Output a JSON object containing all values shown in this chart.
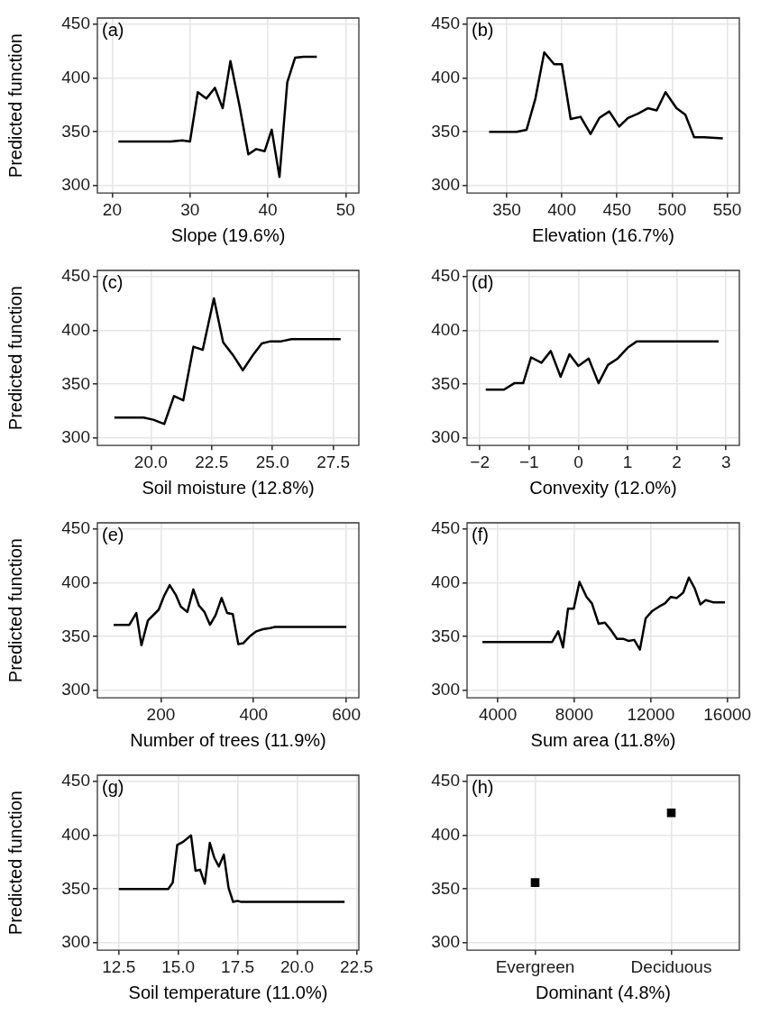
{
  "chart_data": [
    {
      "type": "line",
      "annotations": [
        "(a)"
      ],
      "xlabel": "Slope (19.6%)",
      "ylabel": "Predicted function",
      "xlim": [
        18.1,
        51.7
      ],
      "xticks": [
        20,
        30,
        40,
        50
      ],
      "ylim": [
        293,
        456
      ],
      "yticks": [
        300,
        350,
        400,
        450
      ],
      "grid": true,
      "series": [
        {
          "color": "#000000",
          "x": [
            20.8,
            27.5,
            29,
            30,
            31,
            32.1,
            33.2,
            34.2,
            35.2,
            36.4,
            37.5,
            38.5,
            39.6,
            40.5,
            41.5,
            42.5,
            43.5,
            44.6,
            46.3
          ],
          "values": [
            341,
            341,
            342,
            341,
            387,
            381,
            391,
            372,
            416,
            373,
            329,
            334,
            332,
            352,
            308,
            396,
            419,
            420,
            420
          ]
        }
      ]
    },
    {
      "type": "line",
      "annotations": [
        "(b)"
      ],
      "xlabel": "Elevation (16.7%)",
      "xlim": [
        314,
        561
      ],
      "xticks": [
        350,
        400,
        450,
        500,
        550
      ],
      "ylim": [
        293,
        456
      ],
      "yticks": [
        300,
        350,
        400,
        450
      ],
      "grid": true,
      "series": [
        {
          "color": "#000000",
          "x": [
            334,
            359,
            368,
            376,
            384,
            393,
            400,
            408,
            417,
            426,
            434,
            443,
            452,
            460,
            469,
            478,
            486,
            494,
            504,
            512,
            520,
            529,
            546
          ],
          "values": [
            350,
            350,
            352,
            381,
            424,
            413,
            413,
            362,
            364,
            348,
            363,
            369,
            355,
            363,
            367,
            372,
            370,
            387,
            372,
            366,
            345,
            345,
            344
          ]
        }
      ]
    },
    {
      "type": "line",
      "annotations": [
        "(c)"
      ],
      "xlabel": "Soil moisture (12.8%)",
      "ylabel": "Predicted function",
      "xlim": [
        17.8,
        28.55
      ],
      "xticks": [
        {
          "value": 20,
          "label": "20.0"
        },
        22.5,
        {
          "value": 25,
          "label": "25.0"
        },
        27.5
      ],
      "ylim": [
        293,
        456
      ],
      "yticks": [
        300,
        350,
        400,
        450
      ],
      "grid": true,
      "series": [
        {
          "color": "#000000",
          "x": [
            18.5,
            19.7,
            20.1,
            20.55,
            20.95,
            21.33,
            21.75,
            22.13,
            22.59,
            22.97,
            23.38,
            23.78,
            24.22,
            24.56,
            24.92,
            25.36,
            25.78,
            27.8
          ],
          "values": [
            319,
            319,
            317,
            313,
            339,
            335,
            385,
            382,
            430,
            389,
            377,
            363,
            378,
            388,
            390,
            390,
            392,
            392
          ]
        }
      ]
    },
    {
      "type": "line",
      "annotations": [
        "(d)"
      ],
      "xlabel": "Convexity (12.0%)",
      "xlim": [
        -2.26,
        3.27
      ],
      "xticks": [
        {
          "value": -2,
          "label": "−2"
        },
        {
          "value": -1,
          "label": "−1"
        },
        0,
        1,
        2,
        3
      ],
      "ylim": [
        293,
        456
      ],
      "yticks": [
        300,
        350,
        400,
        450
      ],
      "grid": true,
      "series": [
        {
          "color": "#000000",
          "x": [
            -1.88,
            -1.51,
            -1.3,
            -1.12,
            -0.96,
            -0.75,
            -0.56,
            -0.36,
            -0.18,
            0,
            0.21,
            0.41,
            0.6,
            0.8,
            1,
            1.19,
            1.51,
            2.85
          ],
          "values": [
            345,
            345,
            351,
            351,
            375,
            370,
            381,
            357,
            378,
            367,
            374,
            351,
            368,
            374,
            384,
            390,
            390,
            390
          ]
        }
      ]
    },
    {
      "type": "line",
      "annotations": [
        "(e)"
      ],
      "xlabel": "Number of trees (11.9%)",
      "ylabel": "Predicted function",
      "xlim": [
        63,
        627
      ],
      "xticks": [
        200,
        400,
        600
      ],
      "ylim": [
        293,
        456
      ],
      "yticks": [
        300,
        350,
        400,
        450
      ],
      "grid": true,
      "series": [
        {
          "color": "#000000",
          "x": [
            98,
            132,
            147,
            158,
            172,
            195,
            207,
            219,
            232,
            243,
            257,
            270,
            282,
            294,
            306,
            318,
            331,
            343,
            355,
            367,
            378,
            391,
            406,
            420,
            436,
            446,
            600
          ],
          "values": [
            361,
            361,
            372,
            342,
            365,
            375,
            388,
            398,
            389,
            378,
            373,
            394,
            379,
            373,
            361,
            370,
            386,
            372,
            371,
            343,
            344,
            350,
            355,
            357,
            358,
            359,
            359
          ]
        }
      ]
    },
    {
      "type": "line",
      "annotations": [
        "(f)"
      ],
      "xlabel": "Sum area (11.8%)",
      "xlim": [
        2394,
        16627
      ],
      "xticks": [
        4000,
        8000,
        12000,
        16000
      ],
      "ylim": [
        293,
        456
      ],
      "yticks": [
        300,
        350,
        400,
        450
      ],
      "grid": true,
      "series": [
        {
          "color": "#000000",
          "x": [
            3200,
            6840,
            7160,
            7410,
            7670,
            7970,
            8270,
            8640,
            8920,
            9270,
            9600,
            9920,
            10230,
            10550,
            10850,
            11130,
            11430,
            11730,
            12080,
            12430,
            12740,
            13040,
            13360,
            13690,
            13990,
            14290,
            14590,
            14870,
            15250,
            15870
          ],
          "values": [
            345,
            345,
            355,
            340,
            376,
            376,
            401,
            387,
            381,
            362,
            363,
            356,
            348,
            348,
            346,
            347,
            338,
            367,
            374,
            378,
            381,
            387,
            386,
            391,
            405,
            395,
            380,
            384,
            382,
            382
          ]
        }
      ]
    },
    {
      "type": "line",
      "annotations": [
        "(g)"
      ],
      "xlabel": "Soil temperature (11.0%)",
      "ylabel": "Predicted function",
      "xlim": [
        11.6,
        22.6
      ],
      "xticks": [
        12.5,
        {
          "value": 15,
          "label": "15.0"
        },
        17.5,
        {
          "value": 20,
          "label": "20.0"
        },
        22.5
      ],
      "ylim": [
        293,
        456
      ],
      "yticks": [
        300,
        350,
        400,
        450
      ],
      "grid": true,
      "series": [
        {
          "color": "#000000",
          "x": [
            12.5,
            14.58,
            14.77,
            14.96,
            15.21,
            15.54,
            15.73,
            15.92,
            16.12,
            16.33,
            16.52,
            16.71,
            16.92,
            17.12,
            17.31,
            17.5,
            17.65,
            22
          ],
          "values": [
            350,
            350,
            356,
            391,
            394,
            400,
            367,
            368,
            355,
            393,
            379,
            371,
            382,
            351,
            338,
            339,
            338,
            338
          ]
        }
      ]
    },
    {
      "type": "scatter",
      "marker": "square",
      "annotations": [
        "(h)"
      ],
      "xlabel": "Dominant (4.8%)",
      "categories": [
        "Evergreen",
        "Deciduous"
      ],
      "ylim": [
        293,
        456
      ],
      "yticks": [
        300,
        350,
        400,
        450
      ],
      "grid": true,
      "series": [
        {
          "color": "#000000",
          "x": [
            "Evergreen",
            "Deciduous"
          ],
          "values": [
            356,
            421
          ]
        }
      ]
    }
  ]
}
